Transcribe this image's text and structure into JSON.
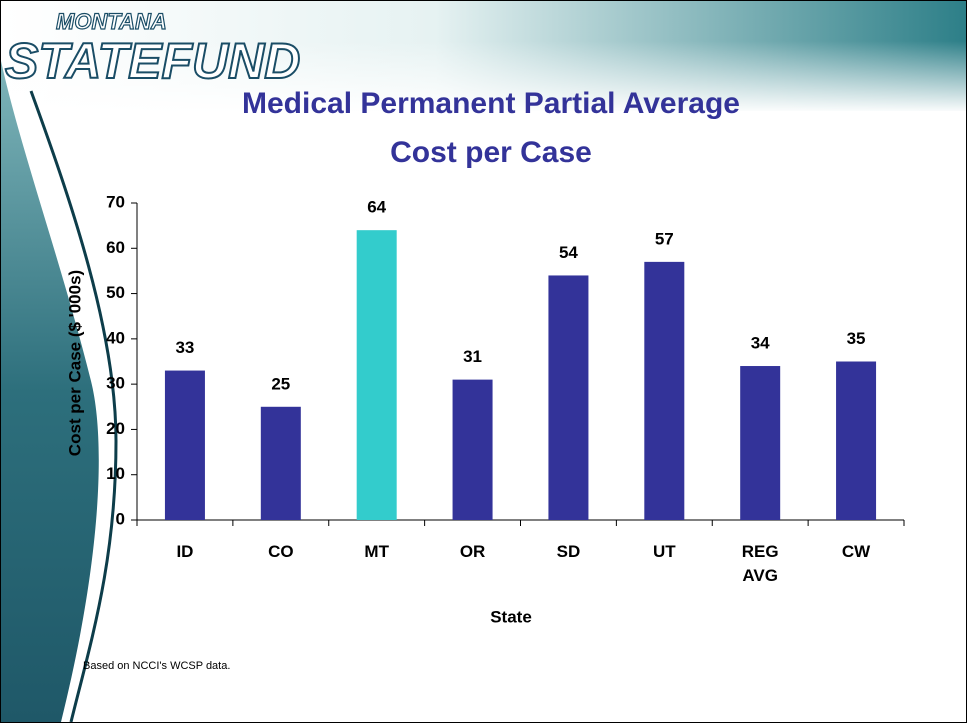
{
  "logo": {
    "top": "MONTANA",
    "main": "STATEFUND"
  },
  "footnote": "Based on NCCI's WCSP data.",
  "chart_data": {
    "type": "bar",
    "title": [
      "Medical Permanent Partial Average",
      "Cost per Case"
    ],
    "x_label": "State",
    "y_label": "Cost per Case ($ '000s)",
    "categories": [
      "ID",
      "CO",
      "MT",
      "OR",
      "SD",
      "UT",
      "REG AVG",
      "CW"
    ],
    "values": [
      33,
      25,
      64,
      31,
      54,
      57,
      34,
      35
    ],
    "colors": [
      "#333399",
      "#333399",
      "#33cccc",
      "#333399",
      "#333399",
      "#333399",
      "#333399",
      "#333399"
    ],
    "ylim": [
      0,
      70
    ],
    "yticks": [
      0,
      10,
      20,
      30,
      40,
      50,
      60,
      70
    ],
    "grid": false
  }
}
